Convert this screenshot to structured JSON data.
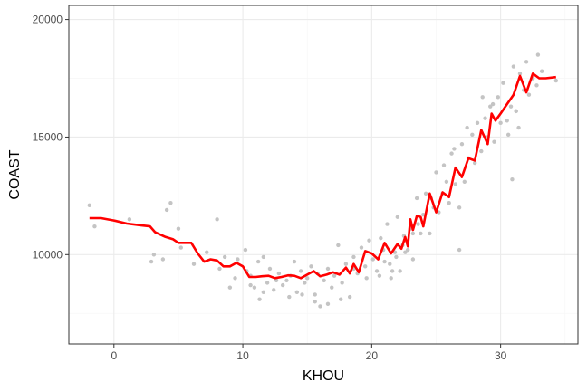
{
  "chart_data": {
    "type": "scatter",
    "xlabel": "KHOU",
    "ylabel": "COAST",
    "xlim": [
      -3.5,
      36
    ],
    "ylim": [
      6200,
      20600
    ],
    "x_ticks": [
      0,
      10,
      20,
      30
    ],
    "x_tick_labels": [
      "0",
      "10",
      "20",
      "30"
    ],
    "y_ticks": [
      10000,
      15000,
      20000
    ],
    "y_tick_labels": [
      "10000",
      "15000",
      "20000"
    ],
    "grid": true,
    "legend": "none",
    "colors": {
      "points": "#c4c4c4",
      "line": "#ff0000",
      "grid_major": "#ebebeb",
      "grid_minor": "#f5f5f5",
      "panel_border": "#333333"
    },
    "series": [
      {
        "kind": "points",
        "x": [
          -1.9,
          -1.5,
          1.2,
          2.9,
          3.1,
          3.8,
          4.1,
          4.4,
          5.0,
          5.2,
          6.2,
          7.2,
          8.0,
          8.2,
          8.6,
          9.0,
          9.6,
          10.2,
          10.3,
          10.6,
          10.9,
          11.2,
          11.3,
          11.6,
          11.9,
          12.1,
          12.4,
          12.8,
          13.1,
          13.4,
          13.7,
          14.0,
          14.2,
          14.5,
          14.8,
          15.0,
          15.3,
          15.6,
          15.8,
          16.0,
          16.3,
          16.6,
          16.9,
          17.1,
          17.4,
          17.7,
          18.0,
          18.3,
          18.6,
          18.9,
          19.2,
          19.5,
          19.8,
          20.1,
          20.4,
          20.7,
          21.0,
          21.2,
          21.5,
          21.8,
          22.0,
          22.2,
          22.5,
          22.8,
          23.0,
          23.2,
          23.5,
          23.8,
          24.0,
          24.2,
          24.5,
          24.8,
          25.0,
          25.2,
          25.5,
          25.8,
          26.0,
          26.2,
          26.5,
          26.8,
          27.0,
          27.2,
          27.5,
          27.8,
          28.0,
          28.2,
          28.5,
          28.8,
          29.0,
          29.2,
          29.5,
          29.8,
          30.0,
          30.2,
          30.5,
          30.8,
          31.0,
          31.2,
          31.5,
          31.8,
          32.0,
          32.2,
          32.5,
          32.8,
          33.2,
          34.3,
          31.2,
          31.4,
          30.6,
          29.4,
          28.6,
          27.4,
          26.4,
          25.6,
          24.6,
          23.6,
          22.6,
          21.6,
          20.6,
          19.6,
          18.6,
          17.6,
          16.6,
          15.6,
          14.6,
          13.6,
          12.6,
          11.6,
          10.6,
          9.4,
          26.8,
          30.9,
          32.9,
          23.2,
          22.4,
          21.9,
          21.4,
          20.9
        ],
        "y": [
          12100,
          11200,
          11500,
          9700,
          10000,
          9800,
          11900,
          12200,
          11100,
          10300,
          9600,
          10100,
          11500,
          9400,
          9900,
          8600,
          9800,
          10200,
          9300,
          9100,
          8600,
          9700,
          8100,
          9900,
          8800,
          9400,
          8500,
          9200,
          8700,
          8900,
          9100,
          9700,
          8400,
          9300,
          8800,
          9000,
          9500,
          8300,
          9200,
          7800,
          8900,
          9400,
          8600,
          9100,
          10400,
          8800,
          9600,
          8200,
          9900,
          9200,
          10300,
          9500,
          10600,
          9800,
          9300,
          10700,
          9700,
          11300,
          9000,
          10100,
          11600,
          9300,
          10800,
          10200,
          11100,
          9800,
          12400,
          10900,
          11700,
          12600,
          10900,
          12000,
          13500,
          11800,
          12600,
          13100,
          12200,
          14300,
          13000,
          12000,
          14700,
          13100,
          14100,
          15100,
          13900,
          15600,
          14400,
          15800,
          15000,
          16300,
          14800,
          16700,
          15600,
          17300,
          15700,
          16300,
          18000,
          16100,
          17700,
          17000,
          18200,
          16800,
          17500,
          17200,
          17800,
          17400,
          16100,
          15400,
          15100,
          16400,
          16700,
          15400,
          14500,
          13800,
          12400,
          11300,
          10100,
          9300,
          9100,
          9000,
          9400,
          8100,
          7900,
          8000,
          8300,
          8200,
          8900,
          8400,
          8700,
          9000,
          10200,
          13200,
          18500,
          10900,
          10400,
          9900,
          9600,
          10200
        ]
      },
      {
        "kind": "line",
        "x": [
          -1.9,
          -1.0,
          0.0,
          1.0,
          2.0,
          2.8,
          3.2,
          3.6,
          4.0,
          4.6,
          5.0,
          6.0,
          6.5,
          7.0,
          7.5,
          8.0,
          8.5,
          9.0,
          9.5,
          10.0,
          10.5,
          11.0,
          11.5,
          12.0,
          12.5,
          13.0,
          13.5,
          14.0,
          14.5,
          15.0,
          15.5,
          16.0,
          16.5,
          17.0,
          17.5,
          18.0,
          18.3,
          18.6,
          19.0,
          19.5,
          20.0,
          20.5,
          21.0,
          21.5,
          22.0,
          22.3,
          22.6,
          22.8,
          23.0,
          23.2,
          23.5,
          23.8,
          24.0,
          24.5,
          25.0,
          25.5,
          26.0,
          26.5,
          27.0,
          27.5,
          28.0,
          28.5,
          29.0,
          29.3,
          29.6,
          30.0,
          30.5,
          31.0,
          31.5,
          32.0,
          32.5,
          33.0,
          33.5,
          34.3
        ],
        "y": [
          11550,
          11550,
          11450,
          11320,
          11250,
          11200,
          10950,
          10850,
          10750,
          10650,
          10500,
          10500,
          10050,
          9700,
          9800,
          9750,
          9500,
          9500,
          9650,
          9500,
          9050,
          9050,
          9080,
          9100,
          9000,
          9050,
          9120,
          9100,
          9000,
          9150,
          9300,
          9080,
          9150,
          9250,
          9150,
          9450,
          9200,
          9600,
          9250,
          10150,
          10050,
          9800,
          10500,
          10050,
          10450,
          10250,
          10750,
          10350,
          11500,
          11050,
          11650,
          11600,
          11200,
          12600,
          11800,
          12650,
          12450,
          13700,
          13300,
          14100,
          14000,
          15300,
          14700,
          16000,
          15700,
          16000,
          16400,
          16800,
          17600,
          16900,
          17700,
          17500,
          17500,
          17550
        ]
      }
    ]
  }
}
